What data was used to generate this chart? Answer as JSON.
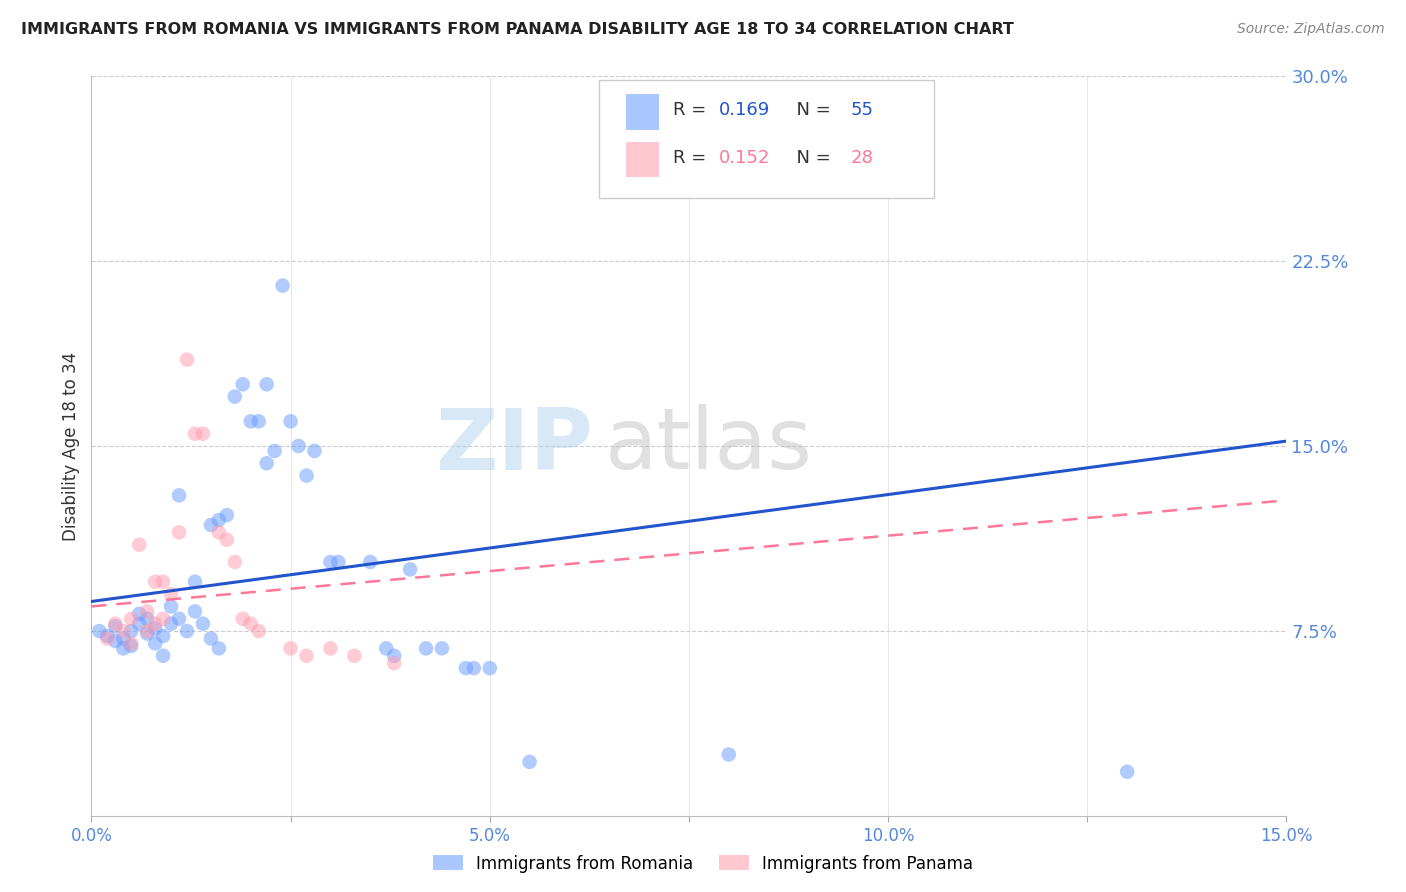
{
  "title": "IMMIGRANTS FROM ROMANIA VS IMMIGRANTS FROM PANAMA DISABILITY AGE 18 TO 34 CORRELATION CHART",
  "source": "Source: ZipAtlas.com",
  "ylabel_label": "Disability Age 18 to 34",
  "xlim": [
    0.0,
    0.15
  ],
  "ylim": [
    0.0,
    0.3
  ],
  "xticks": [
    0.0,
    0.025,
    0.05,
    0.075,
    0.1,
    0.125,
    0.15
  ],
  "xticklabels": [
    "0.0%",
    "",
    "5.0%",
    "",
    "10.0%",
    "",
    "15.0%"
  ],
  "yticks_right": [
    0.075,
    0.15,
    0.225,
    0.3
  ],
  "ytick_labels_right": [
    "7.5%",
    "15.0%",
    "22.5%",
    "30.0%"
  ],
  "romania_color": "#6699ff",
  "panama_color": "#ff99aa",
  "romania_line_color": "#2255cc",
  "panama_line_color": "#ff7799",
  "legend_r_romania": "0.169",
  "legend_n_romania": "55",
  "legend_r_panama": "0.152",
  "legend_n_panama": "28",
  "watermark_zip": "ZIP",
  "watermark_atlas": "atlas",
  "romania_points": [
    [
      0.001,
      0.075
    ],
    [
      0.002,
      0.073
    ],
    [
      0.003,
      0.071
    ],
    [
      0.003,
      0.077
    ],
    [
      0.004,
      0.068
    ],
    [
      0.004,
      0.072
    ],
    [
      0.005,
      0.069
    ],
    [
      0.005,
      0.075
    ],
    [
      0.006,
      0.078
    ],
    [
      0.006,
      0.082
    ],
    [
      0.007,
      0.074
    ],
    [
      0.007,
      0.08
    ],
    [
      0.008,
      0.07
    ],
    [
      0.008,
      0.076
    ],
    [
      0.009,
      0.073
    ],
    [
      0.009,
      0.065
    ],
    [
      0.01,
      0.078
    ],
    [
      0.01,
      0.085
    ],
    [
      0.011,
      0.08
    ],
    [
      0.011,
      0.13
    ],
    [
      0.012,
      0.075
    ],
    [
      0.013,
      0.083
    ],
    [
      0.013,
      0.095
    ],
    [
      0.014,
      0.078
    ],
    [
      0.015,
      0.072
    ],
    [
      0.015,
      0.118
    ],
    [
      0.016,
      0.068
    ],
    [
      0.016,
      0.12
    ],
    [
      0.017,
      0.122
    ],
    [
      0.018,
      0.17
    ],
    [
      0.019,
      0.175
    ],
    [
      0.02,
      0.16
    ],
    [
      0.021,
      0.16
    ],
    [
      0.022,
      0.143
    ],
    [
      0.022,
      0.175
    ],
    [
      0.023,
      0.148
    ],
    [
      0.024,
      0.215
    ],
    [
      0.025,
      0.16
    ],
    [
      0.026,
      0.15
    ],
    [
      0.027,
      0.138
    ],
    [
      0.028,
      0.148
    ],
    [
      0.03,
      0.103
    ],
    [
      0.031,
      0.103
    ],
    [
      0.035,
      0.103
    ],
    [
      0.037,
      0.068
    ],
    [
      0.038,
      0.065
    ],
    [
      0.04,
      0.1
    ],
    [
      0.042,
      0.068
    ],
    [
      0.044,
      0.068
    ],
    [
      0.047,
      0.06
    ],
    [
      0.048,
      0.06
    ],
    [
      0.05,
      0.06
    ],
    [
      0.055,
      0.022
    ],
    [
      0.08,
      0.025
    ],
    [
      0.13,
      0.018
    ]
  ],
  "panama_points": [
    [
      0.002,
      0.072
    ],
    [
      0.003,
      0.078
    ],
    [
      0.004,
      0.075
    ],
    [
      0.005,
      0.07
    ],
    [
      0.005,
      0.08
    ],
    [
      0.006,
      0.11
    ],
    [
      0.007,
      0.075
    ],
    [
      0.007,
      0.083
    ],
    [
      0.008,
      0.078
    ],
    [
      0.008,
      0.095
    ],
    [
      0.009,
      0.08
    ],
    [
      0.009,
      0.095
    ],
    [
      0.01,
      0.09
    ],
    [
      0.011,
      0.115
    ],
    [
      0.012,
      0.185
    ],
    [
      0.013,
      0.155
    ],
    [
      0.014,
      0.155
    ],
    [
      0.016,
      0.115
    ],
    [
      0.017,
      0.112
    ],
    [
      0.018,
      0.103
    ],
    [
      0.019,
      0.08
    ],
    [
      0.02,
      0.078
    ],
    [
      0.021,
      0.075
    ],
    [
      0.025,
      0.068
    ],
    [
      0.027,
      0.065
    ],
    [
      0.03,
      0.068
    ],
    [
      0.033,
      0.065
    ],
    [
      0.038,
      0.062
    ]
  ],
  "romania_trendline": [
    [
      0.0,
      0.087
    ],
    [
      0.15,
      0.152
    ]
  ],
  "panama_trendline": [
    [
      0.0,
      0.085
    ],
    [
      0.15,
      0.128
    ]
  ]
}
